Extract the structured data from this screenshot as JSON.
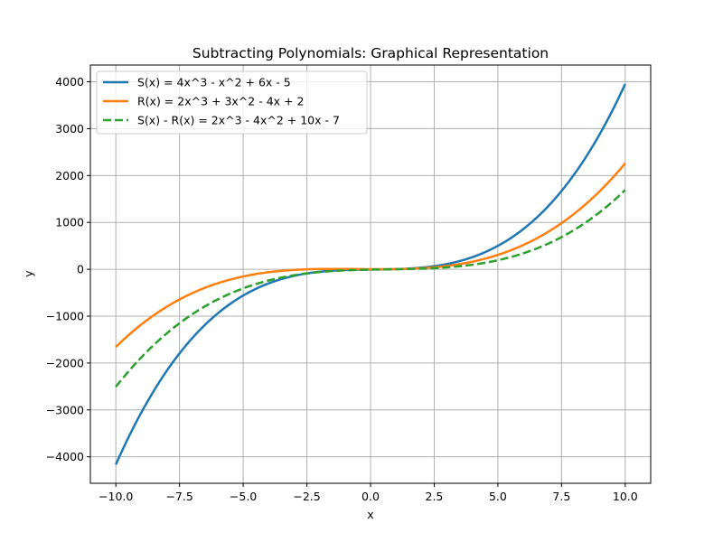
{
  "chart_data": {
    "type": "line",
    "title": "Subtracting Polynomials: Graphical Representation",
    "xlabel": "x",
    "ylabel": "y",
    "xlim": [
      -11,
      11
    ],
    "ylim": [
      -4565,
      4357
    ],
    "xticks": [
      -10,
      -7.5,
      -5,
      -2.5,
      0,
      2.5,
      5,
      7.5,
      10
    ],
    "xtick_labels": [
      "−10.0",
      "−7.5",
      "−5.0",
      "−2.5",
      "0.0",
      "2.5",
      "5.0",
      "7.5",
      "10.0"
    ],
    "yticks": [
      -4000,
      -3000,
      -2000,
      -1000,
      0,
      1000,
      2000,
      3000,
      4000
    ],
    "ytick_labels": [
      "−4000",
      "−3000",
      "−2000",
      "−1000",
      "0",
      "1000",
      "2000",
      "3000",
      "4000"
    ],
    "grid": true,
    "legend_position": "top-left",
    "x_range": [
      -10,
      10
    ],
    "series": [
      {
        "name": "S(x) = 4x^3 - x^2 + 6x - 5",
        "coefficients": [
          4,
          -1,
          6,
          -5
        ],
        "color": "#1f77b4",
        "style": "solid"
      },
      {
        "name": "R(x) = 2x^3 + 3x^2 - 4x + 2",
        "coefficients": [
          2,
          3,
          -4,
          2
        ],
        "color": "#ff7f0e",
        "style": "solid"
      },
      {
        "name": "S(x) - R(x) = 2x^3 - 4x^2 + 10x - 7",
        "coefficients": [
          2,
          -4,
          10,
          -7
        ],
        "color": "#2ca02c",
        "style": "dashed"
      }
    ]
  }
}
